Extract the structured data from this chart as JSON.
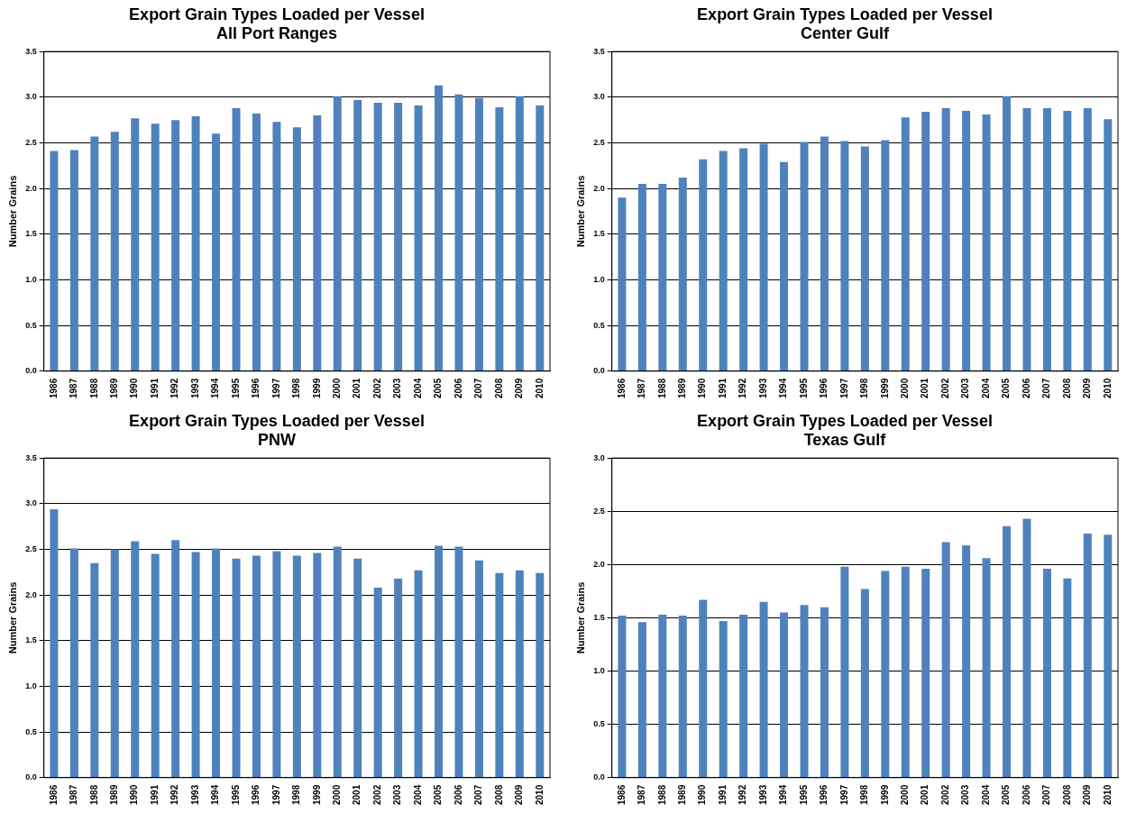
{
  "chart_data": [
    {
      "type": "bar",
      "title": "Export Grain Types Loaded per Vessel",
      "subtitle": "All Port Ranges",
      "ylabel": "Number Grains",
      "categories": [
        "1986",
        "1987",
        "1988",
        "1989",
        "1990",
        "1991",
        "1992",
        "1993",
        "1994",
        "1995",
        "1996",
        "1997",
        "1998",
        "1999",
        "2000",
        "2001",
        "2002",
        "2003",
        "2004",
        "2005",
        "2006",
        "2007",
        "2008",
        "2009",
        "2010"
      ],
      "color": "#4f81bd",
      "values": [
        2.41,
        2.42,
        2.57,
        2.62,
        2.77,
        2.71,
        2.75,
        2.79,
        2.6,
        2.88,
        2.82,
        2.73,
        2.67,
        2.8,
        3.01,
        2.97,
        2.94,
        2.94,
        2.91,
        3.13,
        3.03,
        2.99,
        2.89,
        3.01,
        2.91
      ],
      "ylim": [
        0,
        3.5
      ],
      "yticks": [
        {
          "value": 0,
          "label": "0.0"
        },
        {
          "value": 0.5,
          "label": "0.5"
        },
        {
          "value": 1,
          "label": "1.0"
        },
        {
          "value": 1.5,
          "label": "1.5"
        },
        {
          "value": 2,
          "label": "2.0"
        },
        {
          "value": 2.5,
          "label": "2.5"
        },
        {
          "value": 3,
          "label": "3.0"
        },
        {
          "value": 3.5,
          "label": "3.5"
        }
      ],
      "grid": "y",
      "legend": false
    },
    {
      "type": "bar",
      "title": "Export Grain Types Loaded per Vessel",
      "subtitle": "Center Gulf",
      "ylabel": "Number Grains",
      "categories": [
        "1986",
        "1987",
        "1988",
        "1989",
        "1990",
        "1991",
        "1992",
        "1993",
        "1994",
        "1995",
        "1996",
        "1997",
        "1998",
        "1999",
        "2000",
        "2001",
        "2002",
        "2003",
        "2004",
        "2005",
        "2006",
        "2007",
        "2008",
        "2009",
        "2010"
      ],
      "color": "#4f81bd",
      "values": [
        1.9,
        2.05,
        2.05,
        2.12,
        2.32,
        2.41,
        2.44,
        2.49,
        2.29,
        2.51,
        2.57,
        2.52,
        2.46,
        2.53,
        2.78,
        2.84,
        2.88,
        2.85,
        2.81,
        3.01,
        2.88,
        2.88,
        2.85,
        2.88,
        2.76
      ],
      "ylim": [
        0,
        3.5
      ],
      "yticks": [
        {
          "value": 0,
          "label": "0.0"
        },
        {
          "value": 0.5,
          "label": "0.5"
        },
        {
          "value": 1,
          "label": "1.0"
        },
        {
          "value": 1.5,
          "label": "1.5"
        },
        {
          "value": 2,
          "label": "2.0"
        },
        {
          "value": 2.5,
          "label": "2.5"
        },
        {
          "value": 3,
          "label": "3.0"
        },
        {
          "value": 3.5,
          "label": "3.5"
        }
      ],
      "grid": "y",
      "legend": false
    },
    {
      "type": "bar",
      "title": "Export Grain Types Loaded per Vessel",
      "subtitle": "PNW",
      "ylabel": "Number Grains",
      "categories": [
        "1986",
        "1987",
        "1988",
        "1989",
        "1990",
        "1991",
        "1992",
        "1993",
        "1994",
        "1995",
        "1996",
        "1997",
        "1998",
        "1999",
        "2000",
        "2001",
        "2002",
        "2003",
        "2004",
        "2005",
        "2006",
        "2007",
        "2008",
        "2009",
        "2010"
      ],
      "color": "#4f81bd",
      "values": [
        2.94,
        2.51,
        2.35,
        2.5,
        2.59,
        2.45,
        2.6,
        2.47,
        2.51,
        2.4,
        2.43,
        2.48,
        2.43,
        2.46,
        2.53,
        2.4,
        2.08,
        2.18,
        2.27,
        2.54,
        2.53,
        2.38,
        2.24,
        2.27,
        2.24
      ],
      "ylim": [
        0,
        3.5
      ],
      "yticks": [
        {
          "value": 0,
          "label": "0.0"
        },
        {
          "value": 0.5,
          "label": "0.5"
        },
        {
          "value": 1,
          "label": "1.0"
        },
        {
          "value": 1.5,
          "label": "1.5"
        },
        {
          "value": 2,
          "label": "2.0"
        },
        {
          "value": 2.5,
          "label": "2.5"
        },
        {
          "value": 3,
          "label": "3.0"
        },
        {
          "value": 3.5,
          "label": "3.5"
        }
      ],
      "grid": "y",
      "legend": false
    },
    {
      "type": "bar",
      "title": "Export Grain Types Loaded per Vessel",
      "subtitle": "Texas Gulf",
      "ylabel": "Number Grains",
      "categories": [
        "1986",
        "1987",
        "1988",
        "1989",
        "1990",
        "1991",
        "1992",
        "1993",
        "1994",
        "1995",
        "1996",
        "1997",
        "1998",
        "1999",
        "2000",
        "2001",
        "2002",
        "2003",
        "2004",
        "2005",
        "2006",
        "2007",
        "2008",
        "2009",
        "2010"
      ],
      "color": "#4f81bd",
      "values": [
        1.52,
        1.46,
        1.53,
        1.52,
        1.67,
        1.47,
        1.53,
        1.65,
        1.55,
        1.62,
        1.6,
        1.98,
        1.77,
        1.94,
        1.98,
        1.96,
        2.21,
        2.18,
        2.06,
        2.36,
        2.43,
        1.96,
        1.87,
        2.29,
        2.28
      ],
      "ylim": [
        0,
        3.0
      ],
      "yticks": [
        {
          "value": 0,
          "label": "0.0"
        },
        {
          "value": 0.5,
          "label": "0.5"
        },
        {
          "value": 1,
          "label": "1.0"
        },
        {
          "value": 1.5,
          "label": "1.5"
        },
        {
          "value": 2,
          "label": "2.0"
        },
        {
          "value": 2.5,
          "label": "2.5"
        },
        {
          "value": 3,
          "label": "3.0"
        }
      ],
      "grid": "y",
      "legend": false
    }
  ]
}
